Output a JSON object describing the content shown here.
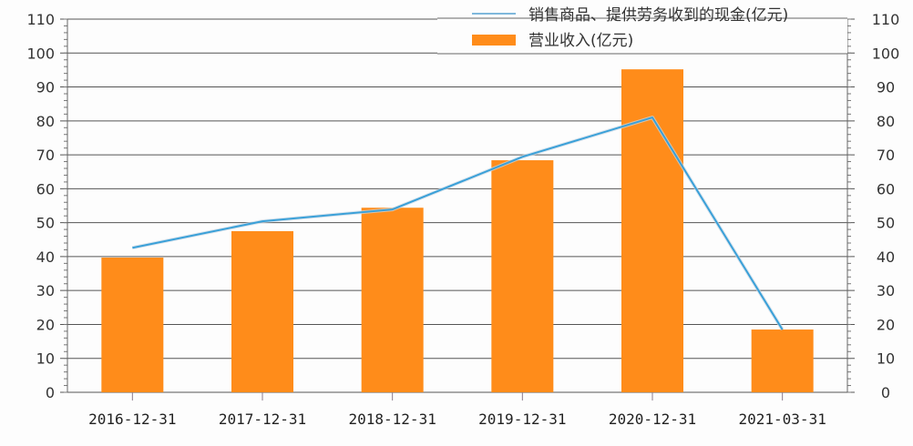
{
  "chart_data": {
    "type": "bar+line",
    "title": "",
    "xlabel": "",
    "ylabel": "",
    "categories": [
      "2016-12-31",
      "2017-12-31",
      "2018-12-31",
      "2019-12-31",
      "2020-12-31",
      "2021-03-31"
    ],
    "series": [
      {
        "name": "销售商品、提供劳务收到的现金(亿元)",
        "type": "line",
        "color": "#3AA0D8",
        "values": [
          42.6,
          50.4,
          53.9,
          69.4,
          81.0,
          18.5
        ]
      },
      {
        "name": "营业收入(亿元)",
        "type": "bar",
        "color": "#FF8C1A",
        "values": [
          39.7,
          47.5,
          54.4,
          68.4,
          95.2,
          18.5
        ]
      }
    ],
    "ylim": [
      0,
      110
    ],
    "y_ticks": [
      0,
      10,
      20,
      30,
      40,
      50,
      60,
      70,
      80,
      90,
      100,
      110
    ],
    "y2_ticks": [
      0,
      10,
      20,
      30,
      40,
      50,
      60,
      70,
      80,
      90,
      100,
      110
    ],
    "grid": true,
    "legend_position": "top-right"
  },
  "legend": {
    "line_label": "销售商品、提供劳务收到的现金(亿元)",
    "bar_label": "营业收入(亿元)"
  }
}
